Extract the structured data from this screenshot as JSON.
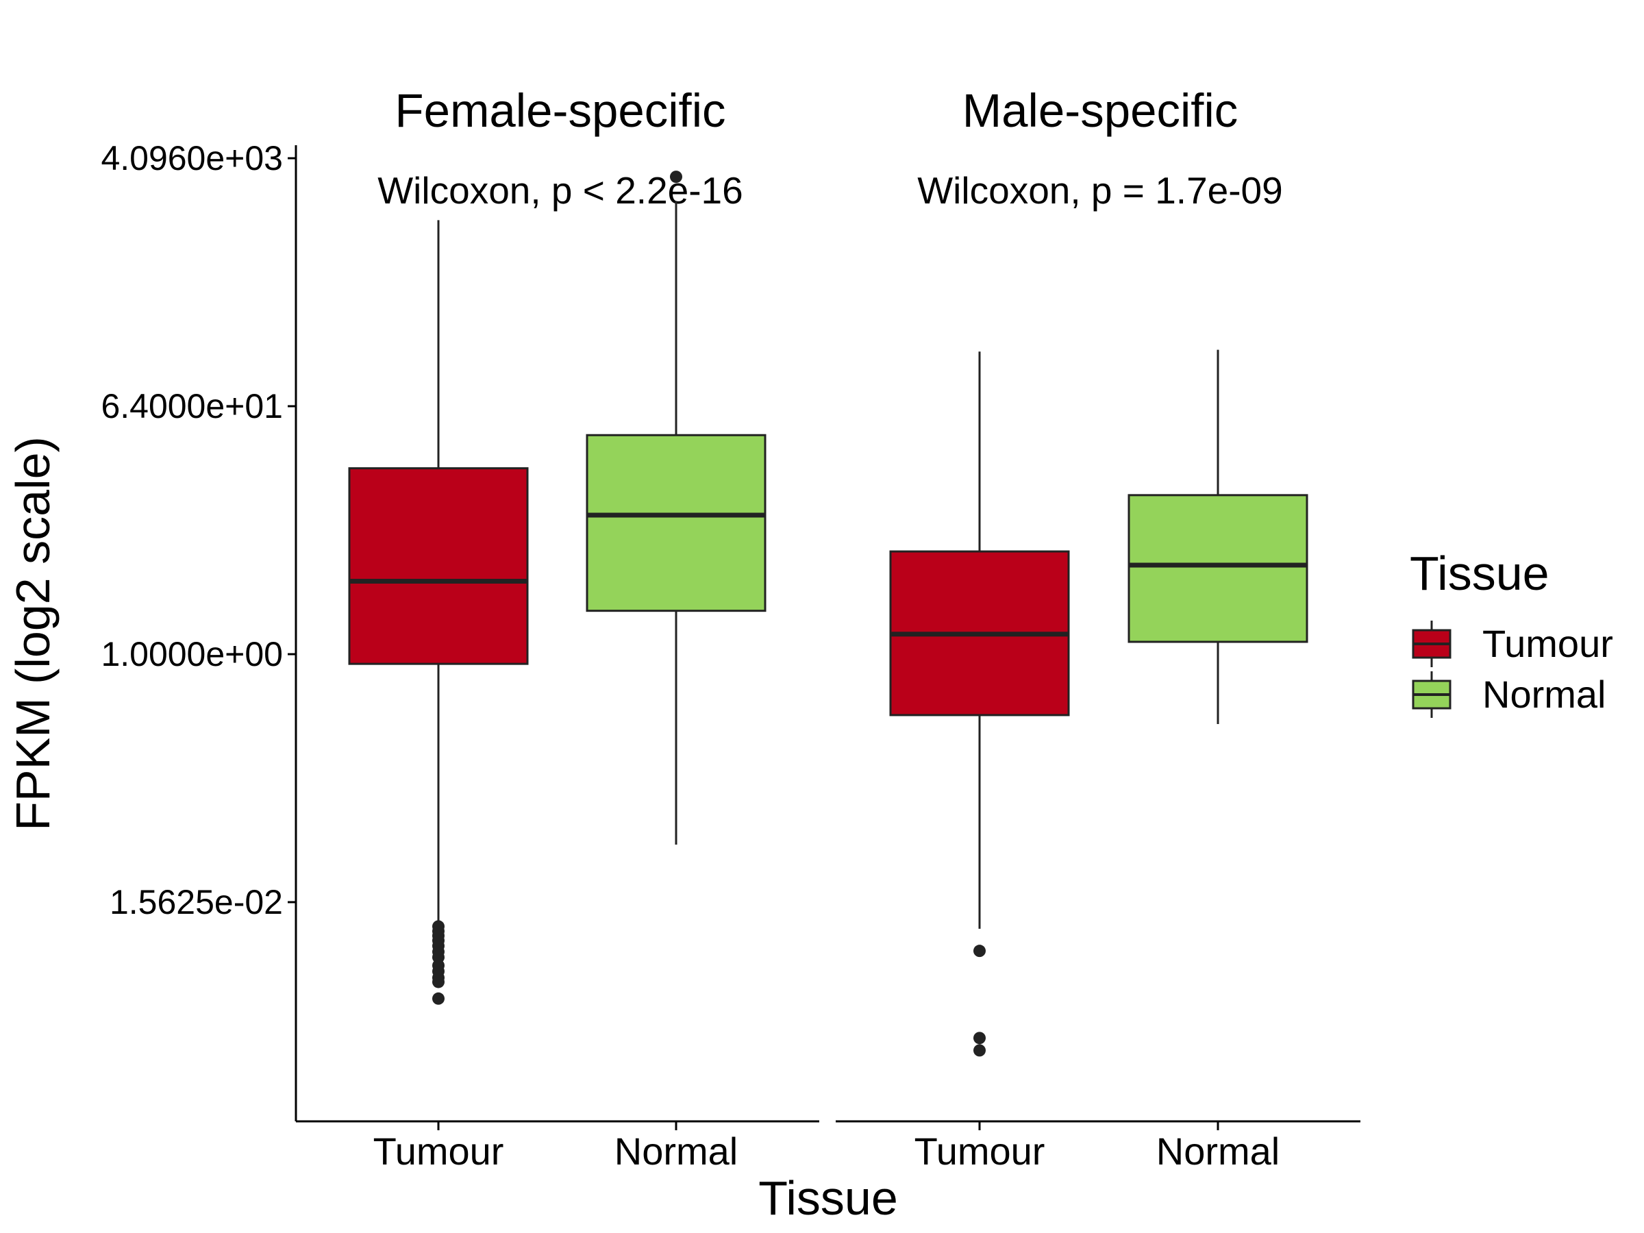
{
  "chart_data": {
    "type": "box",
    "xlabel": "Tissue",
    "ylabel": "FPKM (log2 scale)",
    "y_scale": "log2",
    "ylim": [
      0.0006,
      5000
    ],
    "yticks": [
      {
        "value": 0.015625,
        "label": "1.5625e-02"
      },
      {
        "value": 1,
        "label": "1.0000e+00"
      },
      {
        "value": 64,
        "label": "6.4000e+01"
      },
      {
        "value": 4096,
        "label": "4.0960e+03"
      }
    ],
    "grid": false,
    "legend": {
      "title": "Tissue",
      "position": "right",
      "items": [
        {
          "label": "Tumour",
          "color": "#BA0019"
        },
        {
          "label": "Normal",
          "color": "#94D35A"
        }
      ]
    },
    "panels": [
      {
        "title": "Female-specific",
        "annotation": "Wilcoxon, p < 2.2e-16",
        "categories": [
          "Tumour",
          "Normal"
        ],
        "boxes": [
          {
            "category": "Tumour",
            "whisker_low": 0.0112,
            "q1": 0.85,
            "median": 3.4,
            "q3": 22.6,
            "whisker_high": 1450,
            "outliers": [
              0.0104,
              0.0096,
              0.0089,
              0.0082,
              0.0075,
              0.0068,
              0.0062,
              0.0054,
              0.0049,
              0.0044,
              0.0041,
              0.0031
            ]
          },
          {
            "category": "Normal",
            "whisker_low": 0.041,
            "q1": 2.07,
            "median": 10.3,
            "q3": 39.4,
            "whisker_high": 2000,
            "outliers": [
              3000
            ]
          }
        ]
      },
      {
        "title": "Male-specific",
        "annotation": "Wilcoxon, p = 1.7e-09",
        "categories": [
          "Tumour",
          "Normal"
        ],
        "boxes": [
          {
            "category": "Tumour",
            "whisker_low": 0.01,
            "q1": 0.36,
            "median": 1.4,
            "q3": 5.6,
            "whisker_high": 160,
            "outliers": [
              0.0069,
              0.0016,
              0.0013
            ]
          },
          {
            "category": "Normal",
            "whisker_low": 0.31,
            "q1": 1.23,
            "median": 4.45,
            "q3": 14.4,
            "whisker_high": 165,
            "outliers": []
          }
        ]
      }
    ]
  }
}
